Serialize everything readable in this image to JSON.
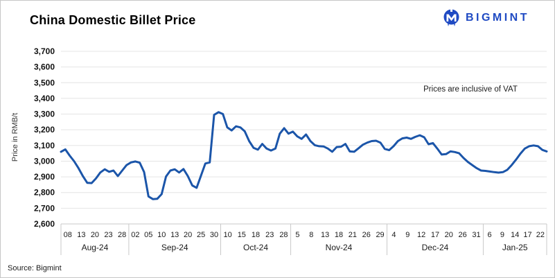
{
  "header": {
    "title": "China Domestic Billet Price",
    "brand": "BIGMINT"
  },
  "footer": {
    "source": "Source: Bigmint"
  },
  "colors": {
    "line": "#1b55a9",
    "brand_blue": "#1f4ac3",
    "grid": "#e4e4e4",
    "axis": "#c9c9c9",
    "text": "#1a1a1a"
  },
  "chart_data": {
    "type": "line",
    "title": "China Domestic Billet Price",
    "ylabel": "Price in RMB/t",
    "annotation": "Prices are inclusive of VAT",
    "ylim": [
      2600,
      3700
    ],
    "ytick_step": 100,
    "grid": "horizontal",
    "legend": "none",
    "months": [
      {
        "label": "Aug-24",
        "ticks": [
          "08",
          "13",
          "20",
          "23",
          "28"
        ],
        "points": 16
      },
      {
        "label": "Sep-24",
        "ticks": [
          "02",
          "05",
          "10",
          "13",
          "20",
          "25",
          "30"
        ],
        "points": 21
      },
      {
        "label": "Oct-24",
        "ticks": [
          "10",
          "15",
          "18",
          "23",
          "28"
        ],
        "points": 16
      },
      {
        "label": "Nov-24",
        "ticks": [
          "5",
          "8",
          "13",
          "18",
          "21",
          "26",
          "29"
        ],
        "points": 22
      },
      {
        "label": "Dec-24",
        "ticks": [
          "4",
          "9",
          "12",
          "17",
          "20",
          "26",
          "31"
        ],
        "points": 22
      },
      {
        "label": "Jan-25",
        "ticks": [
          "6",
          "9",
          "14",
          "17",
          "22"
        ],
        "points": 15
      }
    ],
    "values": [
      3060,
      3075,
      3035,
      3000,
      2955,
      2905,
      2862,
      2860,
      2890,
      2928,
      2948,
      2932,
      2940,
      2905,
      2940,
      2975,
      2992,
      2998,
      2990,
      2930,
      2775,
      2758,
      2760,
      2790,
      2902,
      2940,
      2948,
      2928,
      2950,
      2905,
      2845,
      2830,
      2908,
      2985,
      2992,
      3295,
      3312,
      3300,
      3215,
      3196,
      3222,
      3215,
      3190,
      3128,
      3085,
      3073,
      3110,
      3080,
      3068,
      3080,
      3175,
      3210,
      3175,
      3188,
      3158,
      3142,
      3170,
      3128,
      3102,
      3095,
      3094,
      3080,
      3060,
      3090,
      3092,
      3110,
      3062,
      3060,
      3082,
      3105,
      3118,
      3128,
      3130,
      3118,
      3078,
      3070,
      3095,
      3128,
      3145,
      3150,
      3142,
      3155,
      3165,
      3152,
      3108,
      3115,
      3080,
      3042,
      3045,
      3062,
      3058,
      3050,
      3020,
      2995,
      2975,
      2955,
      2940,
      2938,
      2934,
      2930,
      2927,
      2930,
      2945,
      2975,
      3010,
      3048,
      3080,
      3095,
      3100,
      3095,
      3072,
      3062
    ]
  }
}
